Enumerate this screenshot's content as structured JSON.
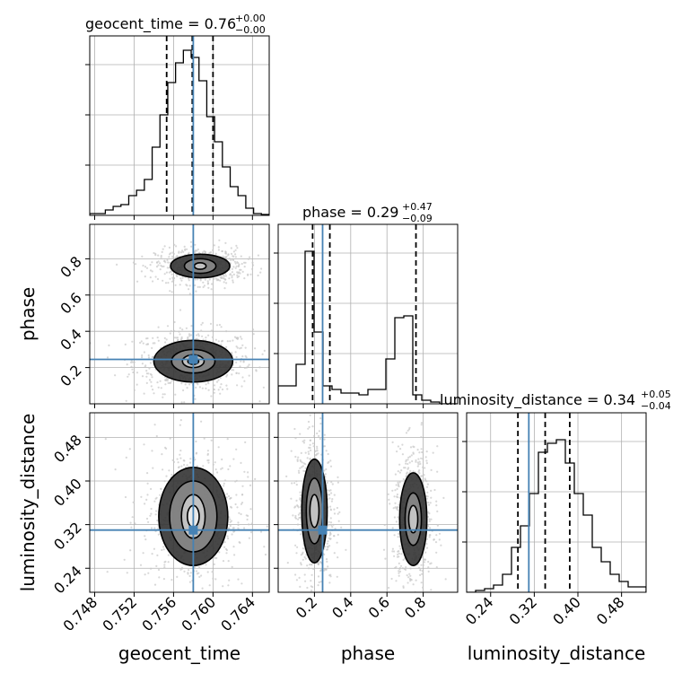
{
  "chart_data": {
    "type": "corner",
    "parameters": [
      {
        "name": "geocent_time",
        "title": "geocent_time = 0.76",
        "title_plus": "+0.00",
        "title_minus": "−0.00",
        "range": [
          0.7475,
          0.7657
        ],
        "ticks": [
          0.748,
          0.752,
          0.756,
          0.76,
          0.764
        ],
        "tick_labels": [
          "0.748",
          "0.752",
          "0.756",
          "0.760",
          "0.764"
        ],
        "truth": 0.758,
        "quantiles": [
          0.7553,
          0.7579,
          0.76
        ],
        "hist": [
          0.01,
          0.01,
          0.03,
          0.05,
          0.06,
          0.11,
          0.14,
          0.2,
          0.38,
          0.56,
          0.74,
          0.85,
          0.92,
          0.88,
          0.75,
          0.55,
          0.41,
          0.27,
          0.16,
          0.11,
          0.04,
          0.01,
          0.005
        ]
      },
      {
        "name": "phase",
        "title": "phase = 0.29",
        "title_plus": "+0.47",
        "title_minus": "−0.09",
        "range": [
          0.0,
          0.99
        ],
        "ticks": [
          0.2,
          0.4,
          0.6,
          0.8
        ],
        "tick_labels": [
          "0.2",
          "0.4",
          "0.6",
          "0.8"
        ],
        "truth": 0.245,
        "quantiles": [
          0.19,
          0.285,
          0.76
        ],
        "hist": [
          0.1,
          0.1,
          0.22,
          0.85,
          0.4,
          0.1,
          0.08,
          0.06,
          0.06,
          0.05,
          0.08,
          0.08,
          0.25,
          0.48,
          0.49,
          0.05,
          0.02,
          0.01,
          0.0,
          0.0
        ]
      },
      {
        "name": "luminosity_distance",
        "title": "luminosity_distance = 0.34",
        "title_plus": "+0.05",
        "title_minus": "−0.04",
        "range": [
          0.196,
          0.525
        ],
        "ticks": [
          0.24,
          0.32,
          0.4,
          0.48
        ],
        "tick_labels": [
          "0.24",
          "0.32",
          "0.40",
          "0.48"
        ],
        "truth": 0.31,
        "quantiles": [
          0.29,
          0.34,
          0.385
        ],
        "hist": [
          0.0,
          0.01,
          0.02,
          0.04,
          0.1,
          0.25,
          0.37,
          0.55,
          0.78,
          0.83,
          0.85,
          0.72,
          0.55,
          0.43,
          0.25,
          0.17,
          0.1,
          0.06,
          0.03,
          0.03
        ]
      }
    ],
    "pairs": [
      {
        "x": "geocent_time",
        "y": "phase",
        "modes": [
          {
            "cx": 0.758,
            "cy": 0.235,
            "levels": [
              [
                0.00055,
                0.018
              ],
              [
                0.0011,
                0.035
              ],
              [
                0.0022,
                0.065
              ],
              [
                0.004,
                0.115
              ]
            ]
          },
          {
            "cx": 0.7587,
            "cy": 0.76,
            "levels": [
              [
                0.0006,
                0.018
              ],
              [
                0.0016,
                0.04
              ],
              [
                0.003,
                0.065
              ]
            ]
          }
        ]
      },
      {
        "x": "geocent_time",
        "y": "luminosity_distance",
        "modes": [
          {
            "cx": 0.758,
            "cy": 0.335,
            "levels": [
              [
                0.0006,
                0.02
              ],
              [
                0.0012,
                0.04
              ],
              [
                0.0024,
                0.065
              ],
              [
                0.0035,
                0.09
              ]
            ]
          }
        ]
      },
      {
        "x": "phase",
        "y": "luminosity_distance",
        "modes": [
          {
            "cx": 0.2,
            "cy": 0.345,
            "levels": [
              [
                0.025,
                0.03
              ],
              [
                0.045,
                0.06
              ],
              [
                0.07,
                0.095
              ]
            ]
          },
          {
            "cx": 0.745,
            "cy": 0.33,
            "levels": [
              [
                0.025,
                0.025
              ],
              [
                0.045,
                0.048
              ],
              [
                0.075,
                0.085
              ]
            ]
          }
        ]
      }
    ],
    "colors": {
      "truth": "#4682b4",
      "hist": "#000000",
      "quantile": "#000000",
      "grid": "#b0b0b0",
      "samples": "#c8c8c8"
    },
    "grid": true
  }
}
